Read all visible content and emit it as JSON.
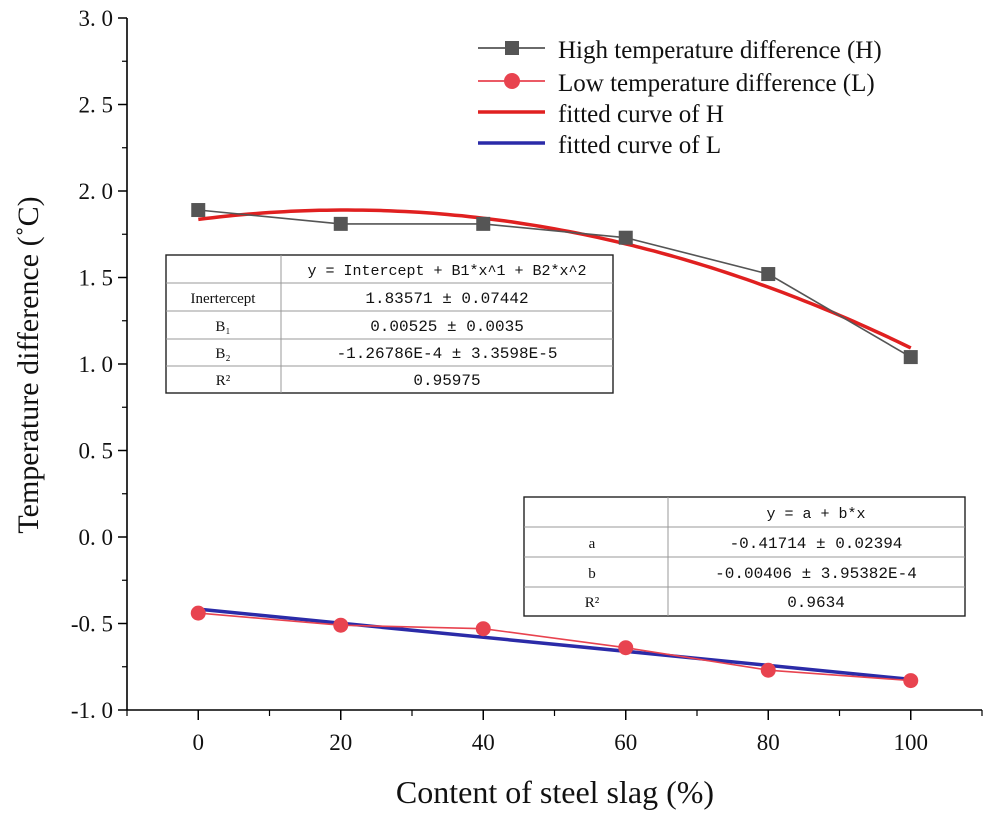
{
  "chart_data": {
    "type": "line",
    "xlabel": "Content of steel slag (%)",
    "ylabel": "Temperature difference (˚C)",
    "xlim": [
      -10,
      110
    ],
    "ylim": [
      -1.0,
      3.0
    ],
    "xticks": [
      "0",
      "20",
      "40",
      "60",
      "80",
      "100"
    ],
    "xtick_values": [
      0,
      20,
      40,
      60,
      80,
      100
    ],
    "yticks": [
      "3. 0",
      "2. 5",
      "2. 0",
      "1. 5",
      "1. 0",
      "0. 5",
      "0. 0",
      "-0. 5",
      "-1. 0"
    ],
    "ytick_values": [
      3.0,
      2.5,
      2.0,
      1.5,
      1.0,
      0.5,
      0.0,
      -0.5,
      -1.0
    ],
    "x": [
      0,
      20,
      40,
      60,
      80,
      100
    ],
    "series": [
      {
        "name": "High temperature difference (H)",
        "values": [
          1.89,
          1.81,
          1.81,
          1.73,
          1.52,
          1.04
        ],
        "color": "#555555",
        "marker": "square"
      },
      {
        "name": "Low temperature difference (L)",
        "values": [
          -0.44,
          -0.51,
          -0.53,
          -0.64,
          -0.77,
          -0.83
        ],
        "color": "#e8434f",
        "marker": "circle"
      }
    ],
    "fits": [
      {
        "name": "fitted curve of H",
        "model": "quadratic",
        "intercept": 1.83571,
        "b1": 0.00525,
        "b2": -0.000126786,
        "color": "#e02020"
      },
      {
        "name": "fitted curve of L",
        "model": "linear",
        "a": -0.41714,
        "b": -0.00406,
        "color": "#2b2ba8"
      }
    ],
    "legend_position": "top-right",
    "legend": [
      "High temperature difference (H)",
      "Low temperature difference (L)",
      "fitted curve of H",
      "fitted curve of L"
    ],
    "table_h": {
      "header": "y = Intercept + B1*x^1 + B2*x^2",
      "rows": [
        {
          "label": "Inertercept",
          "value": "1.83571 ± 0.07442"
        },
        {
          "label": "B₁",
          "value": "0.00525 ± 0.0035"
        },
        {
          "label": "B₂",
          "value": "-1.26786E-4 ± 3.3598E-5"
        },
        {
          "label": "R²",
          "value": "0.95975"
        }
      ]
    },
    "table_l": {
      "header": "y = a + b*x",
      "rows": [
        {
          "label": "a",
          "value": "-0.41714 ± 0.02394"
        },
        {
          "label": "b",
          "value": "-0.00406 ± 3.95382E-4"
        },
        {
          "label": "R²",
          "value": "0.9634"
        }
      ]
    }
  }
}
